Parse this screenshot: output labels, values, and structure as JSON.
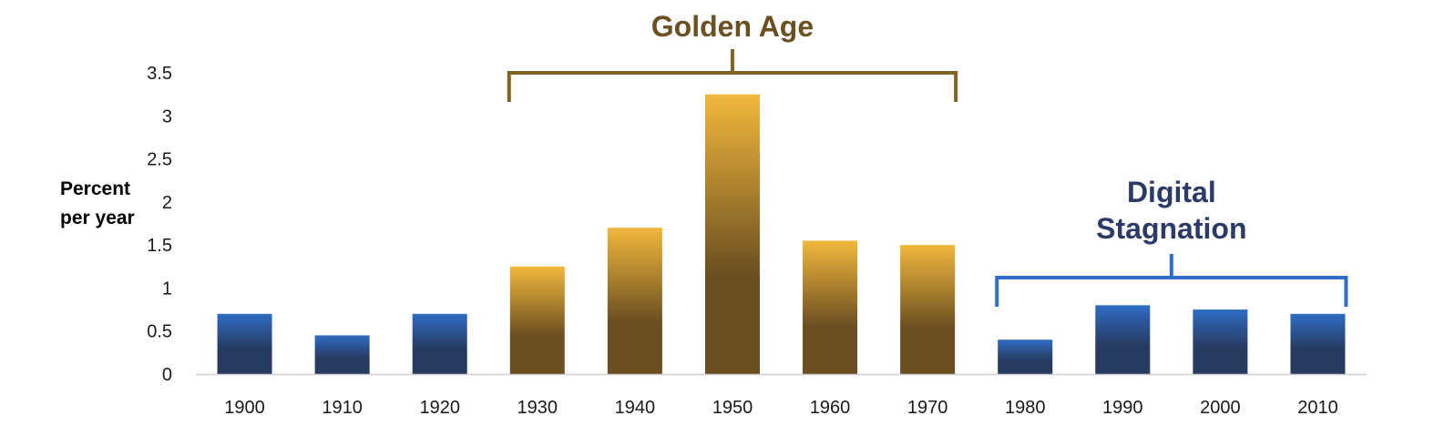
{
  "chart_data": {
    "type": "bar",
    "title": "",
    "xlabel": "",
    "ylabel": [
      "Percent",
      "per year"
    ],
    "ylim": [
      0,
      3.5
    ],
    "yticks": [
      "0",
      "0.5",
      "1",
      "1.5",
      "2",
      "2.5",
      "3",
      "3.5"
    ],
    "grid": false,
    "categories": [
      "1900",
      "1910",
      "1920",
      "1930",
      "1940",
      "1950",
      "1960",
      "1970",
      "1980",
      "1990",
      "2000",
      "2010"
    ],
    "values": [
      0.7,
      0.45,
      0.7,
      1.25,
      1.7,
      3.25,
      1.55,
      1.5,
      0.4,
      0.8,
      0.75,
      0.7
    ],
    "annotations": [
      {
        "label": [
          "Golden Age"
        ],
        "from": "1930",
        "to": "1970",
        "color": "#6b5122"
      },
      {
        "label": [
          "Digital",
          "Stagnation"
        ],
        "from": "1980",
        "to": "2010",
        "color": "#2b3a66"
      }
    ],
    "colors": {
      "golden_top": "#f2b83c",
      "golden_bottom": "#6a4e21",
      "blue_top": "#2f6cc4",
      "blue_bottom": "#273a5f",
      "golden_bracket": "#806327",
      "blue_bracket": "#2e6dcc",
      "axis": "#d0d0d0"
    }
  }
}
